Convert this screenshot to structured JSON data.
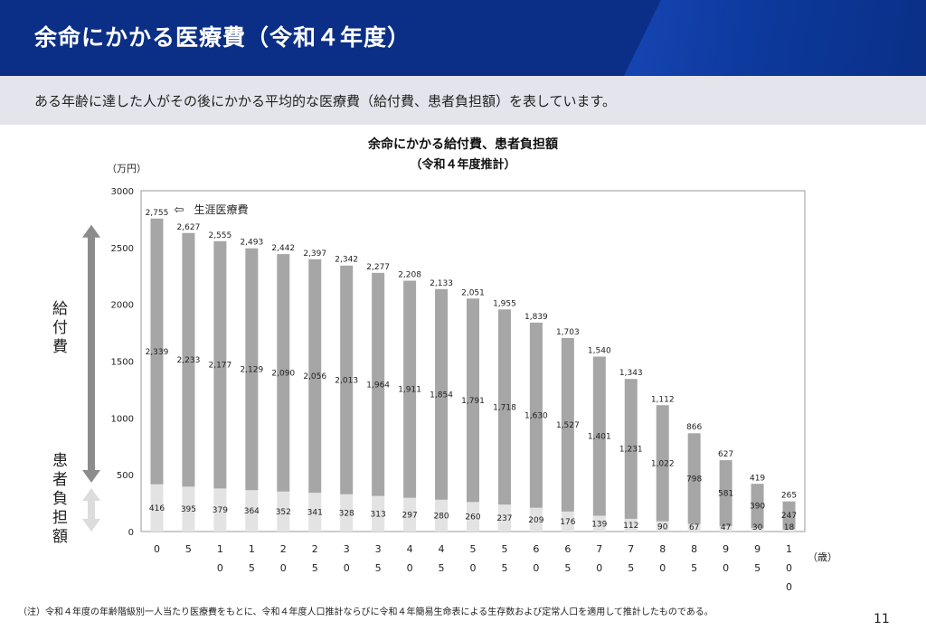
{
  "header": {
    "title": "余命にかかる医療費（令和４年度）"
  },
  "subheader": {
    "text": "ある年齢に達した人がその後にかかる平均的な医療費（給付費、患者負担額）を表しています。"
  },
  "side_labels": {
    "benefit": "給付費",
    "patient": "患者負担額"
  },
  "chart_data": {
    "type": "bar",
    "stacked": true,
    "title": "余命にかかる給付費、患者負担額",
    "subtitle": "（令和４年度推計）",
    "ylabel": "（万円）",
    "xlabel": "（歳）",
    "ylim": [
      0,
      3000
    ],
    "yticks": [
      0,
      500,
      1000,
      1500,
      2000,
      2500,
      3000
    ],
    "categories": [
      "0",
      "5",
      "10",
      "15",
      "20",
      "25",
      "30",
      "35",
      "40",
      "45",
      "50",
      "55",
      "60",
      "65",
      "70",
      "75",
      "80",
      "85",
      "90",
      "95",
      "100"
    ],
    "category_labels": [
      [
        "0"
      ],
      [
        "5"
      ],
      [
        "1",
        "0"
      ],
      [
        "1",
        "5"
      ],
      [
        "2",
        "0"
      ],
      [
        "2",
        "5"
      ],
      [
        "3",
        "0"
      ],
      [
        "3",
        "5"
      ],
      [
        "4",
        "0"
      ],
      [
        "4",
        "5"
      ],
      [
        "5",
        "0"
      ],
      [
        "5",
        "5"
      ],
      [
        "6",
        "0"
      ],
      [
        "6",
        "5"
      ],
      [
        "7",
        "0"
      ],
      [
        "7",
        "5"
      ],
      [
        "8",
        "0"
      ],
      [
        "8",
        "5"
      ],
      [
        "9",
        "0"
      ],
      [
        "9",
        "5"
      ],
      [
        "1",
        "0",
        "0"
      ]
    ],
    "series": [
      {
        "name": "患者負担額",
        "color": "#e3e3e3",
        "values": [
          416,
          395,
          379,
          364,
          352,
          341,
          328,
          313,
          297,
          280,
          260,
          237,
          209,
          176,
          139,
          112,
          90,
          67,
          47,
          30,
          18
        ],
        "labels": [
          "416",
          "395",
          "379",
          "364",
          "352",
          "341",
          "328",
          "313",
          "297",
          "280",
          "260",
          "237",
          "209",
          "176",
          "139",
          "112",
          "90",
          "67",
          "47",
          "30",
          "18"
        ]
      },
      {
        "name": "給付費",
        "color": "#a6a6a6",
        "values": [
          2339,
          2233,
          2177,
          2129,
          2090,
          2056,
          2013,
          1964,
          1911,
          1854,
          1791,
          1718,
          1630,
          1527,
          1401,
          1231,
          1022,
          798,
          581,
          390,
          247
        ],
        "labels": [
          "2,339",
          "2,233",
          "2,177",
          "2,129",
          "2,090",
          "2,056",
          "2,013",
          "1,964",
          "1,911",
          "1,854",
          "1,791",
          "1,718",
          "1,630",
          "1,527",
          "1,401",
          "1,231",
          "1,022",
          "798",
          "581",
          "390",
          "247"
        ]
      }
    ],
    "totals": [
      2755,
      2627,
      2555,
      2493,
      2442,
      2397,
      2342,
      2277,
      2208,
      2133,
      2051,
      1955,
      1839,
      1703,
      1540,
      1343,
      1112,
      866,
      627,
      419,
      265
    ],
    "total_labels": [
      "2,755",
      "2,627",
      "2,555",
      "2,493",
      "2,442",
      "2,397",
      "2,342",
      "2,277",
      "2,208",
      "2,133",
      "2,051",
      "1,955",
      "1,839",
      "1,703",
      "1,540",
      "1,343",
      "1,112",
      "866",
      "627",
      "419",
      "265"
    ],
    "annotation": "生涯医療費",
    "grid": false
  },
  "footnote": "（注）令和４年度の年齢階級別一人当たり医療費をもとに、令和４年度人口推計ならびに令和４年簡易生命表による生存数および定常人口を適用して推計したものである。",
  "page_number": "11"
}
